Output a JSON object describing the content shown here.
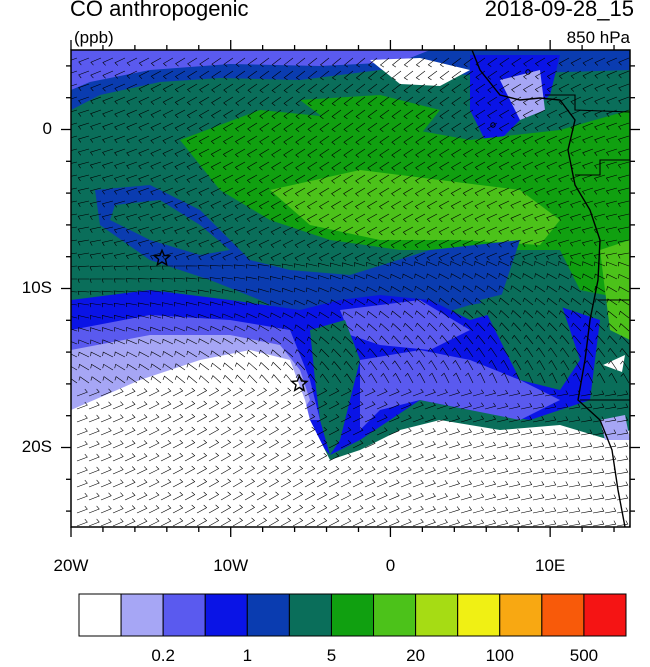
{
  "header": {
    "title": "CO anthropogenic",
    "datetime": "2018-09-28_15",
    "units": "(ppb)",
    "level": "850 hPa"
  },
  "axes": {
    "y_ticks": [
      {
        "label": "0",
        "lat": 0
      },
      {
        "label": "10S",
        "lat": -10
      },
      {
        "label": "20S",
        "lat": -20
      }
    ],
    "x_ticks": [
      {
        "label": "20W",
        "lon": -20
      },
      {
        "label": "10W",
        "lon": -10
      },
      {
        "label": "0",
        "lon": 0
      },
      {
        "label": "10E",
        "lon": 10
      }
    ],
    "lon_range": [
      -20,
      15
    ],
    "lat_range": [
      -25,
      5
    ]
  },
  "colorbar": {
    "colors": [
      "#ffffff",
      "#a6a6f5",
      "#5a5aef",
      "#0a14e6",
      "#0a3cb0",
      "#0a6e5a",
      "#10a010",
      "#4cc21a",
      "#a6dc14",
      "#f0f014",
      "#f8a812",
      "#f85a0a",
      "#f51414"
    ],
    "labels": [
      {
        "text": "0.2",
        "boundary": 2
      },
      {
        "text": "1",
        "boundary": 4
      },
      {
        "text": "5",
        "boundary": 6
      },
      {
        "text": "20",
        "boundary": 8
      },
      {
        "text": "100",
        "boundary": 10
      },
      {
        "text": "500",
        "boundary": 12
      }
    ]
  },
  "markers": [
    {
      "name": "star-marker-west",
      "lon": -14.3,
      "lat": -8.1
    },
    {
      "name": "star-marker-south",
      "lon": -5.7,
      "lat": -16.0
    }
  ],
  "palette": {
    "deep_green": "#0a6e5a",
    "mid_green": "#10a010",
    "light_green": "#4cc21a",
    "dark_blue": "#0a3cb0",
    "blue": "#0a14e6",
    "light_blue": "#5a5aef",
    "pale_blue": "#a6a6f5",
    "white": "#ffffff"
  }
}
